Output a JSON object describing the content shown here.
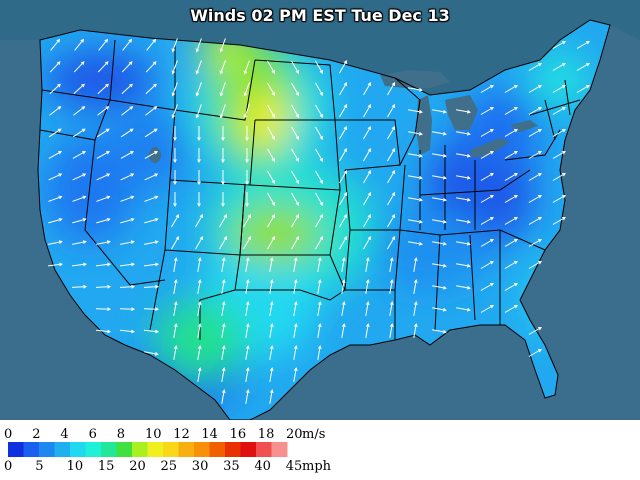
{
  "title": "Winds 02 PM EST Tue Dec 13",
  "colors": {
    "ocean": "#3a6e8c",
    "lakes": "#3f6f8a",
    "outside_land": "#2a5570",
    "state_lines": "#000000",
    "arrows": "#ffffff"
  },
  "legend": {
    "ms_labels": [
      "0",
      "2",
      "4",
      "6",
      "8",
      "10",
      "12",
      "14",
      "16",
      "18",
      "20"
    ],
    "ms_unit": "m/s",
    "mph_labels": [
      "0",
      "5",
      "10",
      "15",
      "20",
      "25",
      "30",
      "35",
      "40",
      "45"
    ],
    "mph_unit": "mph",
    "swatches": [
      "#1030e0",
      "#1a60f0",
      "#1e88f0",
      "#20b0f0",
      "#20d8f0",
      "#20f0d8",
      "#20e898",
      "#40e040",
      "#a8f020",
      "#f0f020",
      "#f8d818",
      "#f8b010",
      "#f89008",
      "#f06000",
      "#e83000",
      "#e01010",
      "#f05050",
      "#f89090"
    ]
  }
}
